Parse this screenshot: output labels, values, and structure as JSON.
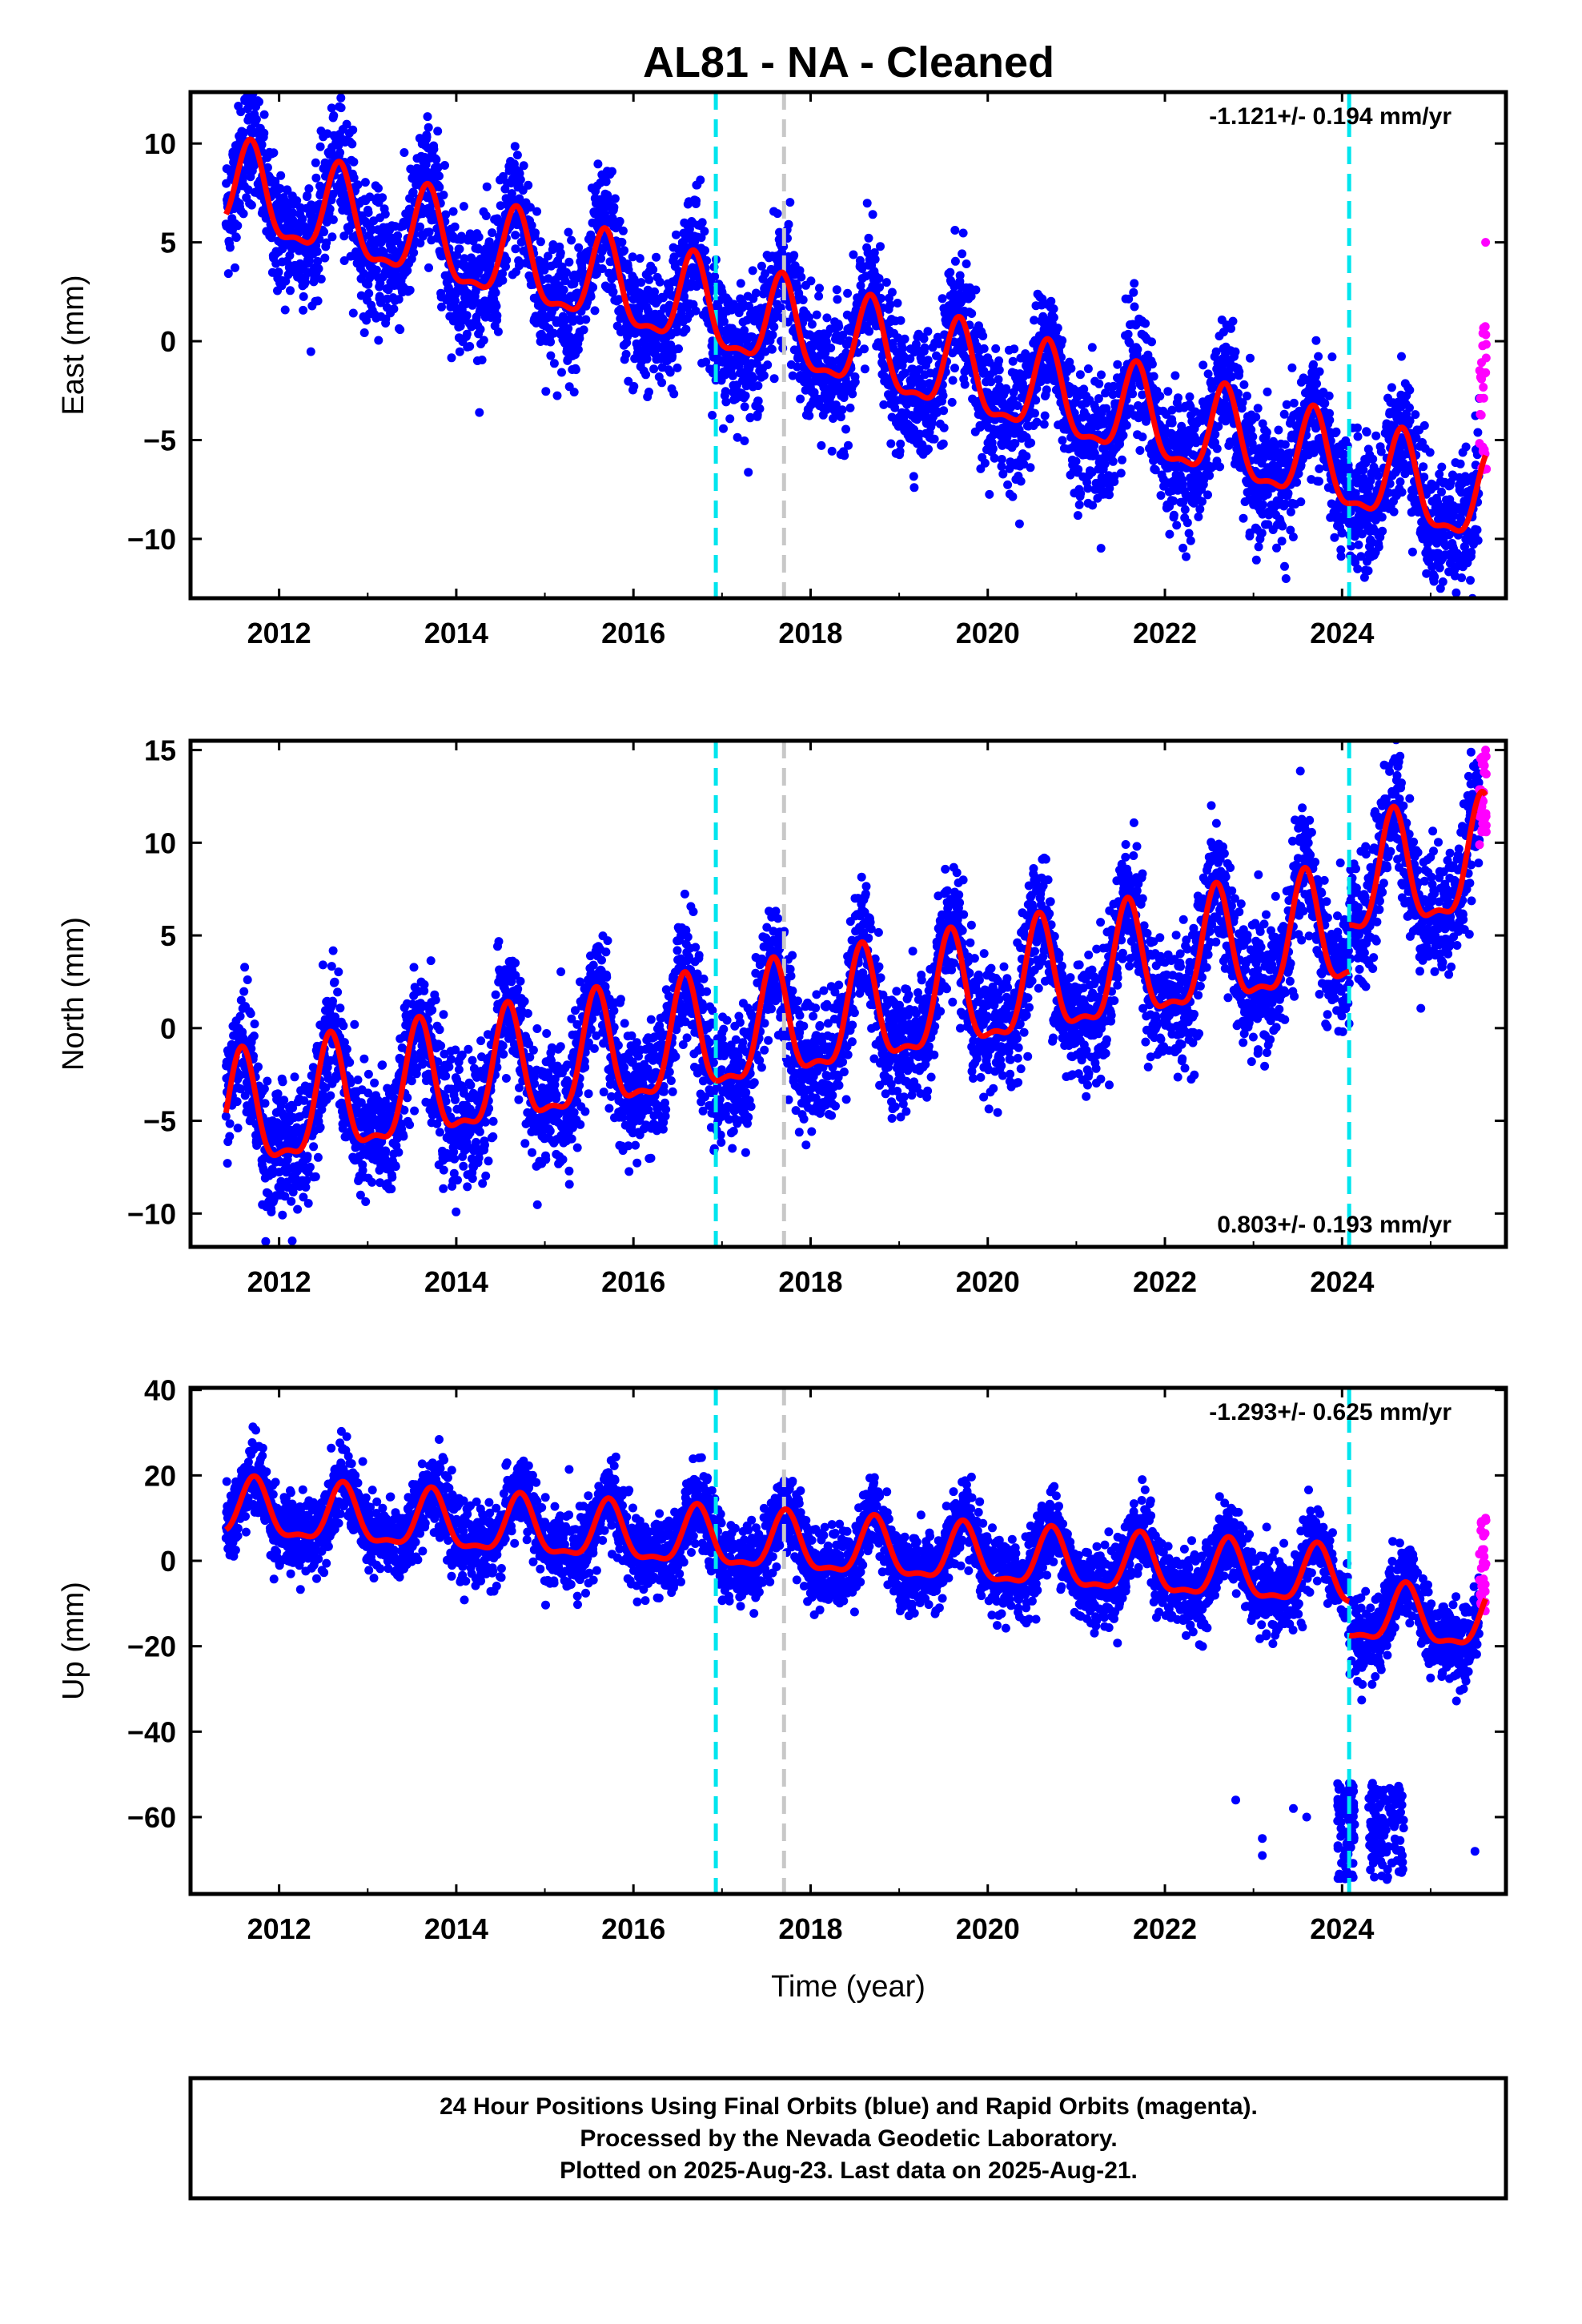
{
  "title": "AL81  - NA - Cleaned",
  "footer": {
    "lines": [
      "24 Hour Positions Using Final Orbits (blue) and Rapid Orbits (magenta).",
      "Processed by the Nevada Geodetic Laboratory.",
      "Plotted on 2025-Aug-23. Last data on 2025-Aug-21."
    ]
  },
  "colors": {
    "final_orbits": "#0000ff",
    "rapid_orbits": "#ff00ff",
    "model": "#ff0000",
    "cyan_lines": "#00e5ee",
    "grey_line": "#c8c8c8"
  },
  "chart_data": [
    {
      "type": "scatter",
      "name": "east",
      "ylabel": "East (mm)",
      "xlabel": "",
      "xlim": [
        2011.0,
        2025.85
      ],
      "ylim": [
        -13,
        12.6
      ],
      "x_ticks": [
        2012,
        2014,
        2016,
        2018,
        2020,
        2022,
        2024
      ],
      "y_ticks": [
        10,
        5,
        0,
        -5,
        -10
      ],
      "rate_text": "-1.121+/- 0.194 mm/yr",
      "rate_position": "top-right",
      "event_lines": [
        {
          "x": 2016.93,
          "color": "cyan"
        },
        {
          "x": 2017.7,
          "color": "grey"
        },
        {
          "x": 2024.08,
          "color": "cyan"
        }
      ],
      "model": {
        "trend": -1.121,
        "intercept_2011": 8.0,
        "annual_amp": 2.2,
        "peak_phase": 0.68,
        "segments": [
          {
            "x0": 2011.4,
            "x1": 2016.93,
            "offset": 0
          },
          {
            "x0": 2016.93,
            "x1": 2024.08,
            "offset": 0
          },
          {
            "x0": 2024.08,
            "x1": 2025.62,
            "offset": 0
          }
        ]
      },
      "scatter_spread": 1.6,
      "rapid_points": {
        "x0": 2025.55,
        "x1": 2025.63,
        "y_range": [
          -6.5,
          0.8
        ],
        "outlier": 5.0
      }
    },
    {
      "type": "scatter",
      "name": "north",
      "ylabel": "North (mm)",
      "xlabel": "",
      "xlim": [
        2011.0,
        2025.85
      ],
      "ylim": [
        -11.8,
        15.5
      ],
      "x_ticks": [
        2012,
        2014,
        2016,
        2018,
        2020,
        2022,
        2024
      ],
      "y_ticks": [
        15,
        10,
        5,
        0,
        -5,
        -10
      ],
      "rate_text": "0.803+/- 0.193 mm/yr",
      "rate_position": "bottom-right",
      "event_lines": [
        {
          "x": 2016.93,
          "color": "cyan"
        },
        {
          "x": 2017.7,
          "color": "grey"
        },
        {
          "x": 2024.08,
          "color": "cyan"
        }
      ],
      "model": {
        "trend": 0.803,
        "intercept_2011": -5.5,
        "annual_amp": 3.0,
        "peak_phase": 0.58,
        "segments": [
          {
            "x0": 2011.4,
            "x1": 2016.93,
            "offset": 0
          },
          {
            "x0": 2016.93,
            "x1": 2024.08,
            "offset": 0
          },
          {
            "x0": 2024.08,
            "x1": 2025.62,
            "offset": 2.5
          }
        ]
      },
      "scatter_spread": 1.7,
      "rapid_points": {
        "x0": 2025.55,
        "x1": 2025.63,
        "y_range": [
          9.5,
          15.0
        ],
        "outlier": 15.0
      }
    },
    {
      "type": "scatter",
      "name": "up",
      "ylabel": "Up (mm)",
      "xlabel": "Time (year)",
      "xlim": [
        2011.0,
        2025.85
      ],
      "ylim": [
        -78,
        40.5
      ],
      "x_ticks": [
        2012,
        2014,
        2016,
        2018,
        2020,
        2022,
        2024
      ],
      "y_ticks": [
        40,
        20,
        0,
        -20,
        -40,
        -60
      ],
      "rate_text": "-1.293+/- 0.625 mm/yr",
      "rate_position": "top-right",
      "event_lines": [
        {
          "x": 2016.93,
          "color": "cyan"
        },
        {
          "x": 2017.7,
          "color": "grey"
        },
        {
          "x": 2024.08,
          "color": "cyan"
        }
      ],
      "model": {
        "trend": -1.293,
        "intercept_2011": 12.0,
        "annual_amp": 6.5,
        "peak_phase": 0.72,
        "segments": [
          {
            "x0": 2011.4,
            "x1": 2016.93,
            "offset": 0
          },
          {
            "x0": 2016.93,
            "x1": 2024.08,
            "offset": 0
          },
          {
            "x0": 2024.08,
            "x1": 2025.62,
            "offset": -8
          }
        ]
      },
      "scatter_spread": 4.5,
      "outlier_cluster": {
        "x0": 2023.95,
        "x1": 2024.7,
        "y_range": [
          -75,
          -52
        ]
      },
      "rapid_points": {
        "x0": 2025.55,
        "x1": 2025.63,
        "y_range": [
          -12,
          10
        ],
        "outlier": 10.0
      }
    }
  ]
}
